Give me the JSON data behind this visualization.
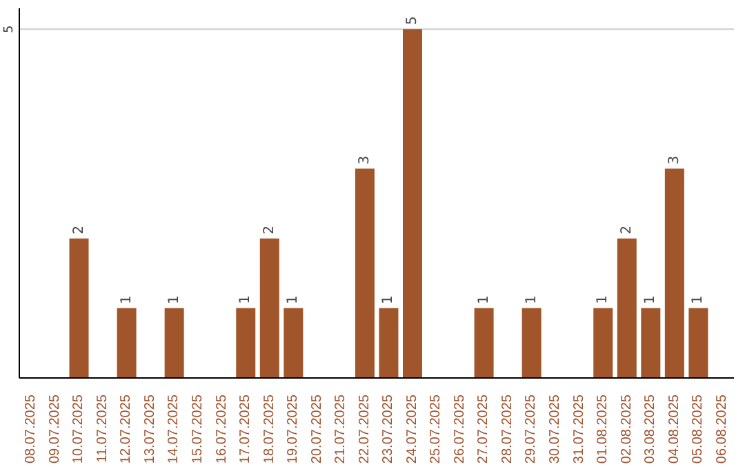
{
  "chart_data": {
    "type": "bar",
    "categories": [
      "08.07.2025",
      "09.07.2025",
      "10.07.2025",
      "11.07.2025",
      "12.07.2025",
      "13.07.2025",
      "14.07.2025",
      "15.07.2025",
      "16.07.2025",
      "17.07.2025",
      "18.07.2025",
      "19.07.2025",
      "20.07.2025",
      "21.07.2025",
      "22.07.2025",
      "23.07.2025",
      "24.07.2025",
      "25.07.2025",
      "26.07.2025",
      "27.07.2025",
      "28.07.2025",
      "29.07.2025",
      "30.07.2025",
      "31.07.2025",
      "01.08.2025",
      "02.08.2025",
      "03.08.2025",
      "04.08.2025",
      "05.08.2025",
      "06.08.2025"
    ],
    "values": [
      0,
      0,
      2,
      0,
      1,
      0,
      1,
      0,
      0,
      1,
      2,
      1,
      0,
      0,
      3,
      1,
      5,
      0,
      0,
      1,
      0,
      1,
      0,
      0,
      1,
      2,
      1,
      3,
      1,
      0
    ],
    "value_labels": [
      null,
      null,
      "2",
      null,
      "1",
      null,
      "1",
      null,
      null,
      "1",
      "2",
      "1",
      null,
      null,
      "3",
      "1",
      "5",
      null,
      null,
      "1",
      null,
      "1",
      null,
      null,
      "1",
      "2",
      "1",
      "3",
      "1",
      null
    ],
    "color": "#a0562a",
    "ylim": [
      0,
      5.3
    ],
    "yticks": [
      5
    ],
    "grid": "y"
  }
}
